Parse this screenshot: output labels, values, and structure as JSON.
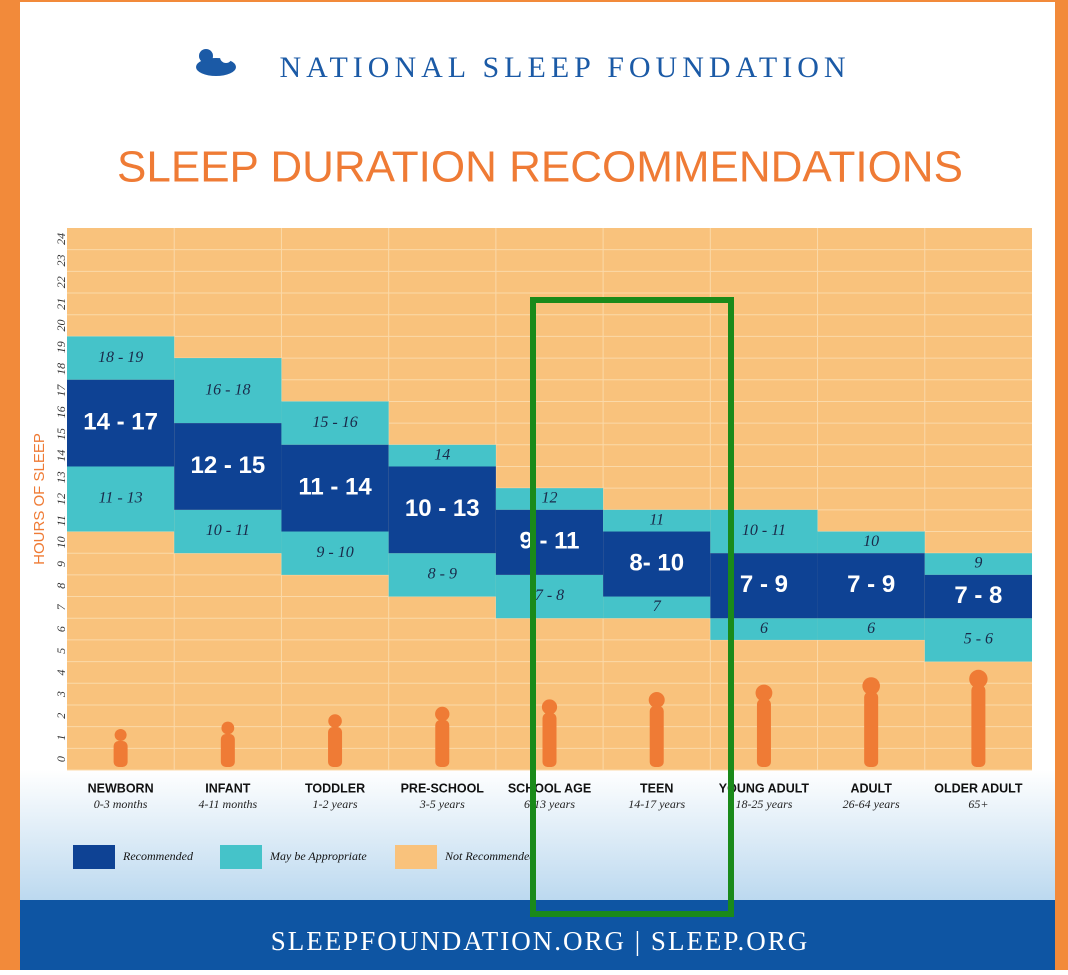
{
  "header": {
    "organization": "NATIONAL SLEEP FOUNDATION"
  },
  "chart_data": {
    "type": "range-bar",
    "title": "SLEEP DURATION RECOMMENDATIONS",
    "y_label": "HOURS OF SLEEP",
    "ylim": [
      0,
      25
    ],
    "yticks": [
      0,
      1,
      2,
      3,
      4,
      5,
      6,
      7,
      8,
      9,
      10,
      11,
      12,
      13,
      14,
      15,
      16,
      17,
      18,
      19,
      20,
      21,
      22,
      23,
      24
    ],
    "grid": true,
    "categories": [
      "NEWBORN",
      "INFANT",
      "TODDLER",
      "PRE-SCHOOL",
      "SCHOOL AGE",
      "TEEN",
      "YOUNG ADULT",
      "ADULT",
      "OLDER ADULT"
    ],
    "category_notes": [
      "0-3 months",
      "4-11 months",
      "1-2 years",
      "3-5 years",
      "6-13 years",
      "14-17 years",
      "18-25 years",
      "26-64 years",
      "65+"
    ],
    "recommended": {
      "name": "Recommended",
      "color": "#0e4294",
      "values": [
        [
          14,
          17
        ],
        [
          12,
          15
        ],
        [
          11,
          14
        ],
        [
          10,
          13
        ],
        [
          9,
          11
        ],
        [
          8,
          10
        ],
        [
          7,
          9
        ],
        [
          7,
          9
        ],
        [
          7,
          8
        ]
      ],
      "value_labels": [
        "14 - 17",
        "12 - 15",
        "11 - 14",
        "10 - 13",
        "9 - 11",
        "8- 10",
        "7 - 9",
        "7 - 9",
        "7 - 8"
      ]
    },
    "appropriate": {
      "name": "May be Appropriate",
      "color": "#45c3c9",
      "below": [
        [
          11,
          13
        ],
        [
          10,
          11
        ],
        [
          9,
          10
        ],
        [
          8,
          9
        ],
        [
          7,
          8
        ],
        [
          7,
          7
        ],
        [
          6,
          6
        ],
        [
          6,
          6
        ],
        [
          5,
          6
        ]
      ],
      "below_labels": [
        "11 - 13",
        "10 - 11",
        "9 - 10",
        "8 - 9",
        "7 - 8",
        "7",
        "6",
        "6",
        "5 - 6"
      ],
      "above": [
        [
          18,
          19
        ],
        [
          16,
          18
        ],
        [
          15,
          16
        ],
        [
          14,
          14
        ],
        [
          12,
          12
        ],
        [
          11,
          11
        ],
        [
          10,
          11
        ],
        [
          10,
          10
        ],
        [
          9,
          9
        ]
      ],
      "above_labels": [
        "18 - 19",
        "16 - 18",
        "15 - 16",
        "14",
        "12",
        "11",
        "10 - 11",
        "10",
        "9"
      ]
    },
    "background": {
      "name": "Not Recommended",
      "color": "#f9c27c"
    }
  },
  "footer": {
    "text": "SLEEPFOUNDATION.ORG | SLEEP.ORG"
  }
}
